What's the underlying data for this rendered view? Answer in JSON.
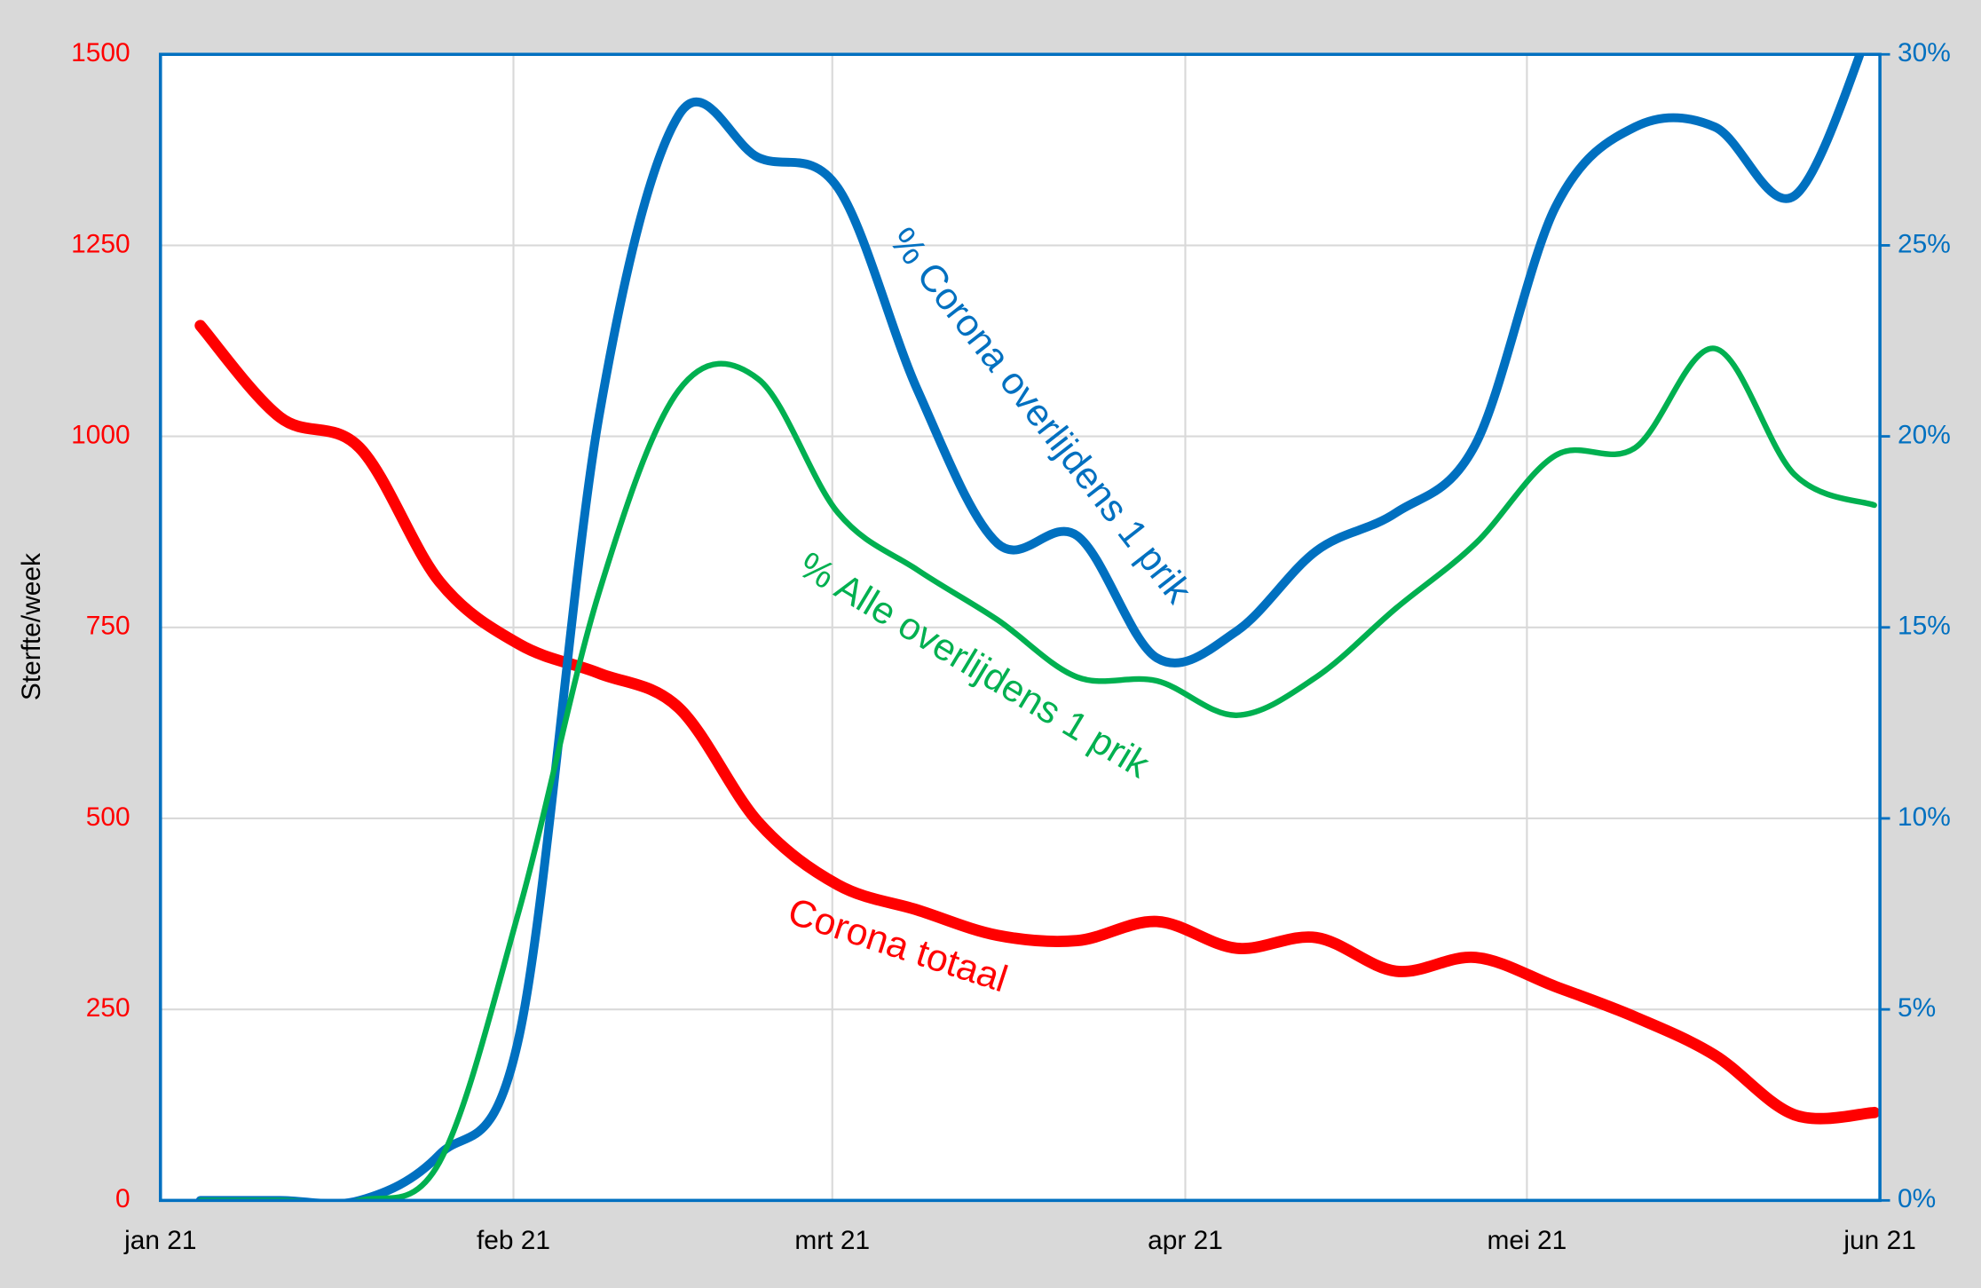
{
  "chart_data": {
    "type": "line",
    "ylabel": "Sterfte/week",
    "x": [
      3.5,
      10.5,
      17.5,
      24.5,
      31.5,
      38.5,
      45.5,
      52.5,
      59.5,
      66.5,
      73.5,
      80.5,
      87.5,
      94.5,
      101.5,
      108.5,
      115.5,
      122.5,
      129.5,
      136.5,
      143.5,
      150.5
    ],
    "xlim": [
      0,
      151
    ],
    "xticks": [
      {
        "value": 0,
        "label": "jan 21"
      },
      {
        "value": 31,
        "label": "feb 21"
      },
      {
        "value": 59,
        "label": "mrt 21"
      },
      {
        "value": 90,
        "label": "apr 21"
      },
      {
        "value": 120,
        "label": "mei 21"
      },
      {
        "value": 151,
        "label": "jun 21"
      }
    ],
    "ylim": [
      0,
      1500
    ],
    "yticks": [
      0,
      250,
      500,
      750,
      1000,
      1250,
      1500
    ],
    "y2lim": [
      0,
      30
    ],
    "y2ticks": [
      {
        "value": 0,
        "label": "0%"
      },
      {
        "value": 5,
        "label": "5%"
      },
      {
        "value": 10,
        "label": "10%"
      },
      {
        "value": 15,
        "label": "15%"
      },
      {
        "value": 20,
        "label": "20%"
      },
      {
        "value": 25,
        "label": "25%"
      },
      {
        "value": 30,
        "label": "30%"
      }
    ],
    "grid": true,
    "series": [
      {
        "name": "Corona totaal",
        "color": "#ff0000",
        "values": [
          1145,
          1025,
          985,
          810,
          728,
          690,
          645,
          495,
          413,
          380,
          347,
          340,
          365,
          330,
          344,
          300,
          318,
          280,
          240,
          190,
          112,
          115
        ]
      },
      {
        "name": "% Corona overlijdens 1 prik",
        "color": "#0070c0",
        "axis": "y2",
        "values": [
          0,
          0,
          0,
          1.2,
          4.3,
          20.5,
          28.4,
          27.3,
          26.5,
          21.2,
          17.2,
          17.4,
          14.2,
          14.9,
          17.0,
          18.0,
          19.8,
          26.0,
          28.1,
          28.1,
          26.3,
          31
        ]
      },
      {
        "name": "% Alle overlijdens 1 prik",
        "color": "#00b050",
        "axis": "y2",
        "values": [
          0,
          0,
          0,
          1.0,
          7.6,
          15.9,
          21.2,
          21.5,
          18.0,
          16.5,
          15.2,
          13.7,
          13.6,
          12.7,
          13.7,
          15.5,
          17.2,
          19.5,
          19.7,
          22.3,
          19.0,
          18.2
        ]
      }
    ]
  }
}
